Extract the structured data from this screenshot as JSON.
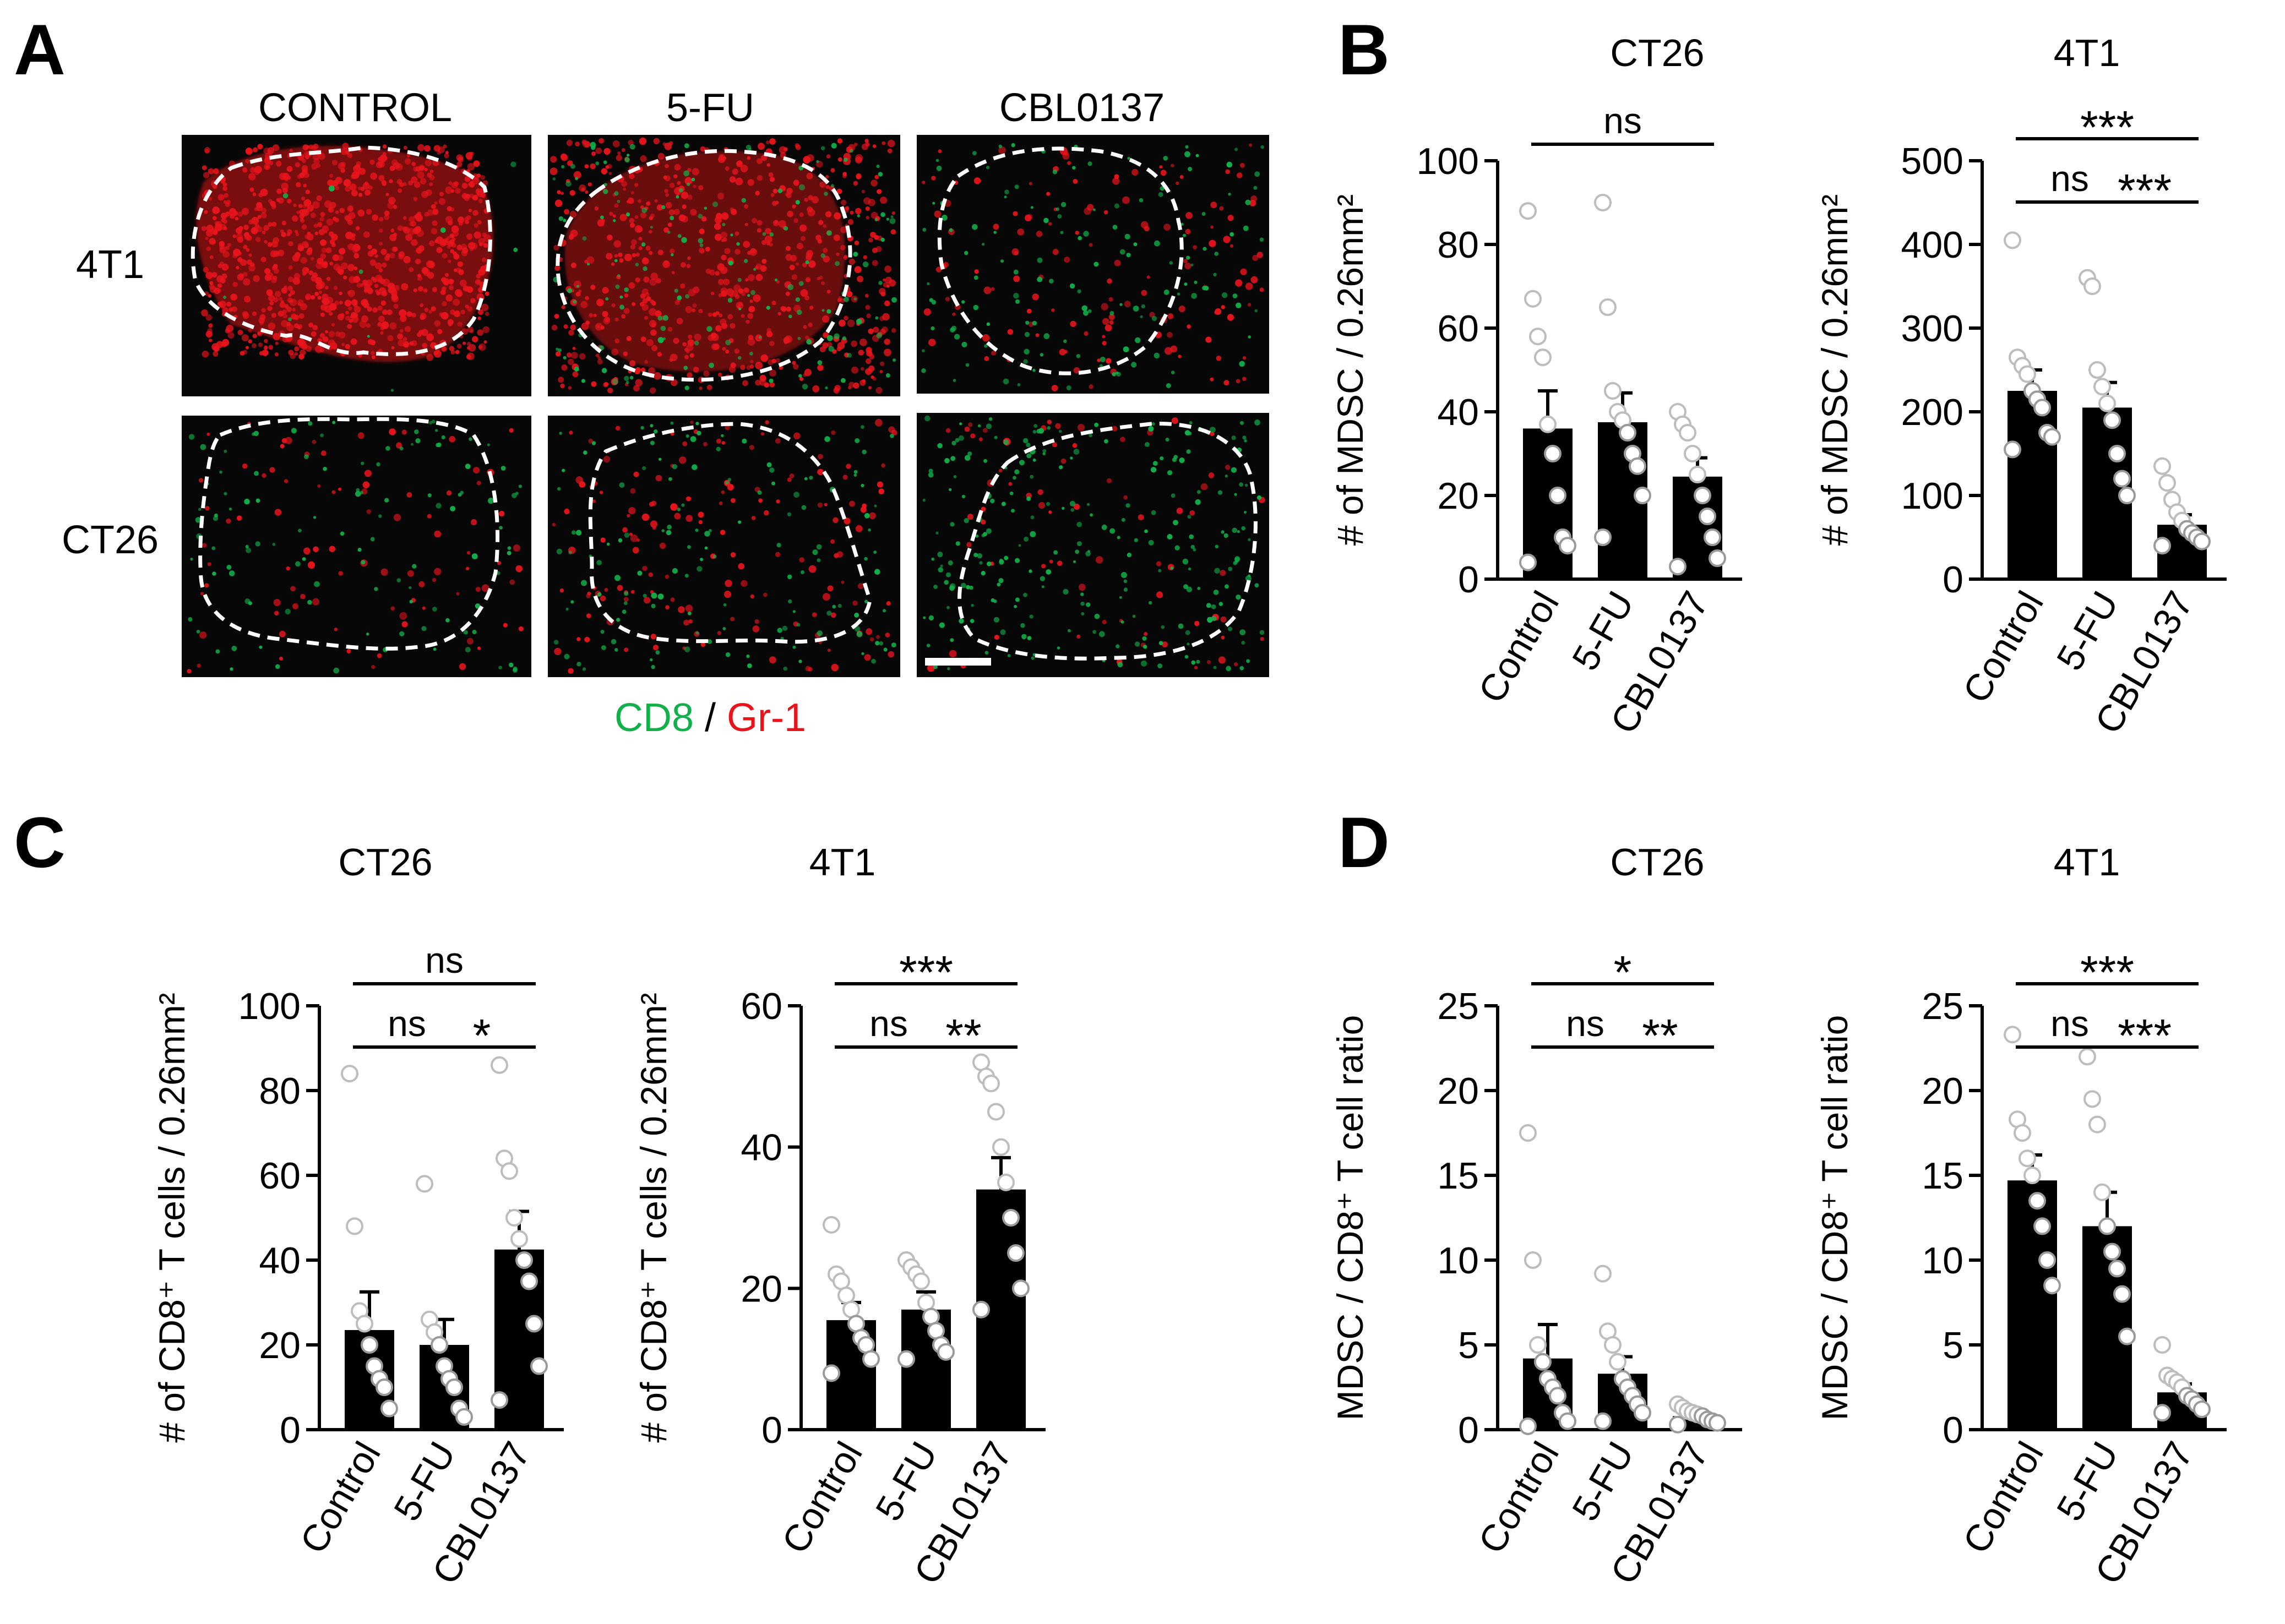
{
  "panel_a": {
    "letter": "A",
    "col_headers": [
      "CONTROL",
      "5-FU",
      "CBL0137"
    ],
    "row_headers": [
      "4T1",
      "CT26"
    ],
    "legend": {
      "cd8": "CD8",
      "sep": " / ",
      "gr1": "Gr-1"
    },
    "colors": {
      "cd8": "#12b04a",
      "gr1": "#e8141c"
    }
  },
  "letters": {
    "b": "B",
    "c": "C",
    "d": "D"
  },
  "chart_data": [
    {
      "type": "bar",
      "panel": "B",
      "title": "CT26",
      "categories": [
        "Control",
        "5-FU",
        "CBL0137"
      ],
      "ylabel": "# of MDSC / 0.26mm²",
      "ylim": [
        0,
        100
      ],
      "yticks": [
        0,
        20,
        40,
        60,
        80,
        100
      ],
      "values": [
        36,
        37.5,
        24.5
      ],
      "errors": [
        9,
        7,
        4.5
      ],
      "points": [
        [
          88,
          67,
          58,
          53,
          37,
          30,
          20,
          10,
          8,
          4
        ],
        [
          90,
          65,
          45,
          40,
          38,
          35,
          30,
          27,
          20,
          10
        ],
        [
          40,
          37,
          35,
          30,
          25,
          20,
          15,
          10,
          5,
          3
        ]
      ],
      "sig": [
        {
          "from": 0,
          "to": 2,
          "label": "ns"
        }
      ]
    },
    {
      "type": "bar",
      "panel": "B",
      "title": "4T1",
      "categories": [
        "Control",
        "5-FU",
        "CBL0137"
      ],
      "ylabel": "# of MDSC / 0.26mm²",
      "ylim": [
        0,
        500
      ],
      "yticks": [
        0,
        100,
        200,
        300,
        400,
        500
      ],
      "values": [
        225,
        205,
        65
      ],
      "errors": [
        25,
        30,
        12
      ],
      "points": [
        [
          405,
          265,
          255,
          245,
          225,
          215,
          205,
          175,
          170,
          155
        ],
        [
          360,
          350,
          250,
          230,
          210,
          190,
          150,
          120,
          100
        ],
        [
          135,
          115,
          95,
          80,
          70,
          60,
          55,
          50,
          45,
          40
        ]
      ],
      "sig": [
        {
          "from": 0,
          "to": 1,
          "label": "ns"
        },
        {
          "from": 1,
          "to": 2,
          "label": "***"
        },
        {
          "from": 0,
          "to": 2,
          "label": "***"
        }
      ]
    },
    {
      "type": "bar",
      "panel": "C",
      "title": "CT26",
      "categories": [
        "Control",
        "5-FU",
        "CBL0137"
      ],
      "ylabel": "# of CD8⁺ T cells / 0.26mm²",
      "ylim": [
        0,
        100
      ],
      "yticks": [
        0,
        20,
        40,
        60,
        80,
        100
      ],
      "values": [
        23.5,
        20,
        42.5
      ],
      "errors": [
        9,
        6,
        9
      ],
      "points": [
        [
          84,
          48,
          28,
          25,
          20,
          15,
          12,
          10,
          5
        ],
        [
          58,
          26,
          23,
          20,
          15,
          12,
          10,
          5,
          3
        ],
        [
          86,
          64,
          61,
          50,
          45,
          40,
          35,
          25,
          15,
          7
        ]
      ],
      "sig": [
        {
          "from": 0,
          "to": 1,
          "label": "ns"
        },
        {
          "from": 1,
          "to": 2,
          "label": "*"
        },
        {
          "from": 0,
          "to": 2,
          "label": "ns"
        }
      ]
    },
    {
      "type": "bar",
      "panel": "C",
      "title": "4T1",
      "categories": [
        "Control",
        "5-FU",
        "CBL0137"
      ],
      "ylabel": "# of CD8⁺ T cells / 0.26mm²",
      "ylim": [
        0,
        60
      ],
      "yticks": [
        0,
        20,
        40,
        60
      ],
      "values": [
        15.5,
        17,
        34
      ],
      "errors": [
        2.5,
        2.5,
        4.5
      ],
      "points": [
        [
          29,
          22,
          21,
          19,
          17,
          15,
          13,
          12,
          10,
          8
        ],
        [
          24,
          23,
          22,
          21,
          18,
          16,
          14,
          12,
          11,
          10
        ],
        [
          52,
          50,
          49,
          45,
          40,
          35,
          30,
          25,
          20,
          17
        ]
      ],
      "sig": [
        {
          "from": 0,
          "to": 1,
          "label": "ns"
        },
        {
          "from": 1,
          "to": 2,
          "label": "**"
        },
        {
          "from": 0,
          "to": 2,
          "label": "***"
        }
      ]
    },
    {
      "type": "bar",
      "panel": "D",
      "title": "CT26",
      "categories": [
        "Control",
        "5-FU",
        "CBL0137"
      ],
      "ylabel": "MDSC / CD8⁺ T cell ratio",
      "ylim": [
        0,
        25
      ],
      "yticks": [
        0,
        5,
        10,
        15,
        20,
        25
      ],
      "values": [
        4.2,
        3.3,
        0.8
      ],
      "errors": [
        2,
        1,
        0.3
      ],
      "points": [
        [
          17.5,
          10,
          5,
          4,
          3,
          2.5,
          2,
          1,
          0.5,
          0.2
        ],
        [
          9.2,
          5.8,
          5,
          4,
          3,
          2.5,
          2,
          1.5,
          1,
          0.5
        ],
        [
          1.5,
          1.3,
          1.1,
          1,
          0.9,
          0.8,
          0.6,
          0.5,
          0.4,
          0.3
        ]
      ],
      "sig": [
        {
          "from": 0,
          "to": 1,
          "label": "ns"
        },
        {
          "from": 1,
          "to": 2,
          "label": "**"
        },
        {
          "from": 0,
          "to": 2,
          "label": "*"
        }
      ]
    },
    {
      "type": "bar",
      "panel": "D",
      "title": "4T1",
      "categories": [
        "Control",
        "5-FU",
        "CBL0137"
      ],
      "ylabel": "MDSC / CD8⁺ T cell ratio",
      "ylim": [
        0,
        25
      ],
      "yticks": [
        0,
        5,
        10,
        15,
        20,
        25
      ],
      "values": [
        14.7,
        12,
        2.2
      ],
      "errors": [
        1.5,
        2,
        0.5
      ],
      "points": [
        [
          23.3,
          18.3,
          17.5,
          16,
          15,
          13.5,
          12,
          10,
          8.5
        ],
        [
          22,
          19.5,
          18,
          14,
          12,
          10.5,
          9.5,
          8,
          5.5
        ],
        [
          5,
          3.2,
          3,
          2.8,
          2.5,
          2,
          1.8,
          1.5,
          1.2,
          1
        ]
      ],
      "sig": [
        {
          "from": 0,
          "to": 1,
          "label": "ns"
        },
        {
          "from": 1,
          "to": 2,
          "label": "***"
        },
        {
          "from": 0,
          "to": 2,
          "label": "***"
        }
      ]
    }
  ]
}
